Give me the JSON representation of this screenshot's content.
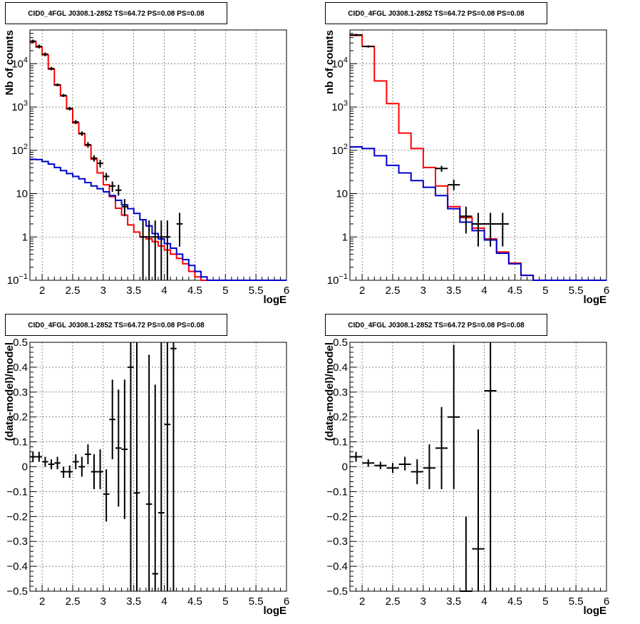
{
  "colors": {
    "data": "#000000",
    "total_model": "#ff0000",
    "component": "#0000cc",
    "grid": "#000000"
  },
  "chart_data": [
    {
      "type": "line",
      "title": "CID0_4FGL J0308.1-2852 TS=64.72 PS=0.08 PS=0.08",
      "xlabel": "logE",
      "ylabel": "Nb of counts",
      "y_scale": "log",
      "xlim": [
        1.8,
        6.0
      ],
      "ylim": [
        0.1,
        60000
      ],
      "x_ticks": [
        "2",
        "2.5",
        "3",
        "3.5",
        "4",
        "4.5",
        "5",
        "5.5",
        "6"
      ],
      "y_ticks": [
        "10^-1",
        "1",
        "10",
        "10^2",
        "10^3",
        "10^4"
      ],
      "grid": true,
      "bin_edges": [
        1.8,
        1.9,
        2.0,
        2.1,
        2.2,
        2.3,
        2.4,
        2.5,
        2.6,
        2.7,
        2.8,
        2.9,
        3.0,
        3.1,
        3.2,
        3.3,
        3.4,
        3.5,
        3.6,
        3.7,
        3.8,
        3.9,
        4.0,
        4.1,
        4.2,
        4.3,
        4.4,
        4.5,
        4.6,
        4.7,
        4.8,
        4.9,
        5.0,
        5.1,
        5.2,
        5.3,
        5.4,
        5.5,
        5.6,
        5.7,
        5.8,
        5.9,
        6.0
      ],
      "series": [
        {
          "style": "step",
          "color": "#ff0000",
          "values": [
            32000,
            24000,
            16000,
            7500,
            3200,
            1800,
            900,
            430,
            240,
            130,
            62,
            30,
            16,
            8.5,
            4.6,
            3.2,
            1.9,
            1.3,
            1.0,
            0.9,
            0.78,
            0.62,
            0.5,
            0.4,
            0.32,
            0.24,
            0.16,
            0.12,
            0.1,
            0.1,
            0.1,
            0.1,
            0.1,
            0.1,
            0.1,
            0.1,
            0.1,
            0.1,
            0.1,
            0.1,
            0.1,
            0.1
          ]
        },
        {
          "style": "step",
          "color": "#0000cc",
          "values": [
            62,
            61,
            55,
            48,
            40,
            34,
            29,
            25,
            22,
            18,
            15,
            13,
            11,
            9,
            7,
            5.5,
            4.5,
            3.5,
            2.5,
            1.8,
            1.2,
            0.9,
            0.7,
            0.55,
            0.4,
            0.3,
            0.22,
            0.16,
            0.12,
            0.1,
            0.1,
            0.1,
            0.1,
            0.1,
            0.1,
            0.1,
            0.1,
            0.1,
            0.1,
            0.1,
            0.1,
            0.1
          ]
        }
      ],
      "points": [
        {
          "x": 1.85,
          "y": 33000,
          "lo": 30000,
          "hi": 36000
        },
        {
          "x": 1.95,
          "y": 25000,
          "lo": 22500,
          "hi": 27500
        },
        {
          "x": 2.05,
          "y": 16500,
          "lo": 14800,
          "hi": 18200
        },
        {
          "x": 2.15,
          "y": 7700,
          "lo": 7000,
          "hi": 8400
        },
        {
          "x": 2.25,
          "y": 3250,
          "lo": 3000,
          "hi": 3500
        },
        {
          "x": 2.35,
          "y": 1850,
          "lo": 1700,
          "hi": 2000
        },
        {
          "x": 2.45,
          "y": 920,
          "lo": 830,
          "hi": 1010
        },
        {
          "x": 2.55,
          "y": 450,
          "lo": 400,
          "hi": 500
        },
        {
          "x": 2.65,
          "y": 245,
          "lo": 215,
          "hi": 275
        },
        {
          "x": 2.75,
          "y": 135,
          "lo": 115,
          "hi": 155
        },
        {
          "x": 2.85,
          "y": 66,
          "lo": 55,
          "hi": 77
        },
        {
          "x": 2.95,
          "y": 50,
          "lo": 40,
          "hi": 60
        },
        {
          "x": 3.05,
          "y": 25,
          "lo": 20,
          "hi": 30
        },
        {
          "x": 3.15,
          "y": 15,
          "lo": 11,
          "hi": 19
        },
        {
          "x": 3.25,
          "y": 12,
          "lo": 9,
          "hi": 16
        },
        {
          "x": 3.35,
          "y": 5,
          "lo": 3,
          "hi": 7.5
        },
        {
          "x": 3.65,
          "y": 1,
          "lo": 0.1,
          "hi": 2.4
        },
        {
          "x": 3.75,
          "y": 1,
          "lo": 0.1,
          "hi": 2.4
        },
        {
          "x": 3.85,
          "y": 1,
          "lo": 0.1,
          "hi": 2.4
        },
        {
          "x": 3.95,
          "y": 1,
          "lo": 0.1,
          "hi": 2.4
        },
        {
          "x": 4.05,
          "y": 1,
          "lo": 0.1,
          "hi": 2.4
        },
        {
          "x": 4.25,
          "y": 2,
          "lo": 0.6,
          "hi": 3.6
        }
      ]
    },
    {
      "type": "line",
      "title": "CID0_4FGL J0308.1-2852 TS=64.72 PS=0.08 PS=0.08",
      "xlabel": "logE",
      "ylabel": "nb of counts",
      "y_scale": "log",
      "xlim": [
        1.8,
        6.0
      ],
      "ylim": [
        0.1,
        60000
      ],
      "x_ticks": [
        "2",
        "2.5",
        "3",
        "3.5",
        "4",
        "4.5",
        "5",
        "5.5",
        "6"
      ],
      "y_ticks": [
        "10^-1",
        "1",
        "10",
        "10^2",
        "10^3",
        "10^4"
      ],
      "grid": true,
      "bin_edges": [
        1.8,
        2.0,
        2.2,
        2.4,
        2.6,
        2.8,
        3.0,
        3.2,
        3.4,
        3.6,
        3.8,
        4.0,
        4.2,
        4.4,
        4.6,
        4.8,
        5.0,
        5.2,
        5.4,
        5.6,
        5.8,
        6.0
      ],
      "series": [
        {
          "style": "step",
          "color": "#ff0000",
          "values": [
            45000,
            25000,
            4000,
            1200,
            250,
            110,
            40,
            15,
            5,
            2.8,
            1.6,
            0.9,
            0.45,
            0.25,
            0.13,
            0.1,
            0.1,
            0.1,
            0.1,
            0.1,
            0.1
          ]
        },
        {
          "style": "step",
          "color": "#0000cc",
          "values": [
            120,
            110,
            75,
            45,
            30,
            20,
            14,
            9,
            4.5,
            2.2,
            1.4,
            0.85,
            0.42,
            0.24,
            0.13,
            0.1,
            0.1,
            0.1,
            0.1,
            0.1,
            0.1
          ]
        }
      ],
      "points": [
        {
          "x": 1.9,
          "y": 46000,
          "lo": 43000,
          "hi": 49000
        },
        {
          "x": 2.1,
          "y": 25000,
          "lo": 23500,
          "hi": 26500
        },
        {
          "x": 3.3,
          "y": 38,
          "lo": 32,
          "hi": 44
        },
        {
          "x": 3.5,
          "y": 16,
          "lo": 12,
          "hi": 21
        },
        {
          "x": 3.7,
          "y": 3,
          "lo": 1.2,
          "hi": 5
        },
        {
          "x": 3.9,
          "y": 2,
          "lo": 0.6,
          "hi": 3.6
        },
        {
          "x": 4.1,
          "y": 2,
          "lo": 0.6,
          "hi": 3.6
        },
        {
          "x": 4.3,
          "y": 2,
          "lo": 0.6,
          "hi": 3.6
        }
      ]
    },
    {
      "type": "scatter",
      "title": "CID0_4FGL J0308.1-2852 TS=64.72 PS=0.08 PS=0.08",
      "xlabel": "logE",
      "ylabel": "(data-model)/model",
      "xlim": [
        1.8,
        6.0
      ],
      "ylim": [
        -0.5,
        0.5
      ],
      "x_ticks": [
        "2",
        "2.5",
        "3",
        "3.5",
        "4",
        "4.5",
        "5",
        "5.5",
        "6"
      ],
      "y_ticks": [
        "−0.5",
        "−0.4",
        "−0.3",
        "−0.2",
        "−0.1",
        "0",
        "0.1",
        "0.2",
        "0.3",
        "0.4",
        "0.5"
      ],
      "grid": true,
      "halfwidth": 0.05,
      "points": [
        {
          "x": 1.85,
          "y": 0.04,
          "lo": 0.02,
          "hi": 0.06
        },
        {
          "x": 1.95,
          "y": 0.04,
          "lo": 0.02,
          "hi": 0.06
        },
        {
          "x": 2.05,
          "y": 0.02,
          "lo": 0.0,
          "hi": 0.04
        },
        {
          "x": 2.15,
          "y": 0.01,
          "lo": -0.01,
          "hi": 0.03
        },
        {
          "x": 2.25,
          "y": 0.015,
          "lo": -0.01,
          "hi": 0.04
        },
        {
          "x": 2.35,
          "y": -0.02,
          "lo": -0.045,
          "hi": 0.0
        },
        {
          "x": 2.45,
          "y": -0.02,
          "lo": -0.045,
          "hi": 0.005
        },
        {
          "x": 2.55,
          "y": 0.02,
          "lo": -0.01,
          "hi": 0.05
        },
        {
          "x": 2.65,
          "y": 0.0,
          "lo": -0.04,
          "hi": 0.04
        },
        {
          "x": 2.75,
          "y": 0.05,
          "lo": 0.01,
          "hi": 0.09
        },
        {
          "x": 2.85,
          "y": -0.02,
          "lo": -0.09,
          "hi": 0.05
        },
        {
          "x": 2.95,
          "y": -0.02,
          "lo": -0.09,
          "hi": 0.07
        },
        {
          "x": 3.05,
          "y": -0.11,
          "lo": -0.22,
          "hi": -0.01
        },
        {
          "x": 3.15,
          "y": 0.19,
          "lo": 0.03,
          "hi": 0.35
        },
        {
          "x": 3.25,
          "y": 0.075,
          "lo": -0.16,
          "hi": 0.31
        },
        {
          "x": 3.35,
          "y": 0.07,
          "lo": -0.21,
          "hi": 0.35
        },
        {
          "x": 3.45,
          "y": 0.4,
          "lo": -0.5,
          "hi": 0.5
        },
        {
          "x": 3.55,
          "y": -0.105,
          "lo": -0.5,
          "hi": 0.5
        },
        {
          "x": 3.75,
          "y": -0.15,
          "lo": -0.5,
          "hi": 0.45
        },
        {
          "x": 3.85,
          "y": -0.43,
          "lo": -0.5,
          "hi": 0.33
        },
        {
          "x": 3.95,
          "y": -0.185,
          "lo": -0.5,
          "hi": 0.5
        },
        {
          "x": 4.05,
          "y": 0.17,
          "lo": -0.5,
          "hi": 0.5
        },
        {
          "x": 4.15,
          "y": 0.475,
          "lo": -0.5,
          "hi": 0.5
        }
      ]
    },
    {
      "type": "scatter",
      "title": "CID0_4FGL J0308.1-2852 TS=64.72 PS=0.08 PS=0.08",
      "xlabel": "logE",
      "ylabel": "(data-model)/model",
      "xlim": [
        1.8,
        6.0
      ],
      "ylim": [
        -0.5,
        0.5
      ],
      "x_ticks": [
        "2",
        "2.5",
        "3",
        "3.5",
        "4",
        "4.5",
        "5",
        "5.5",
        "6"
      ],
      "y_ticks": [
        "−0.5",
        "−0.4",
        "−0.3",
        "−0.2",
        "−0.1",
        "0",
        "0.1",
        "0.2",
        "0.3",
        "0.4",
        "0.5"
      ],
      "grid": true,
      "halfwidth": 0.1,
      "points": [
        {
          "x": 1.9,
          "y": 0.04,
          "lo": 0.02,
          "hi": 0.06
        },
        {
          "x": 2.1,
          "y": 0.015,
          "lo": 0.0,
          "hi": 0.03
        },
        {
          "x": 2.3,
          "y": 0.005,
          "lo": -0.01,
          "hi": 0.02
        },
        {
          "x": 2.5,
          "y": -0.005,
          "lo": -0.025,
          "hi": 0.015
        },
        {
          "x": 2.7,
          "y": 0.01,
          "lo": -0.015,
          "hi": 0.04
        },
        {
          "x": 2.9,
          "y": -0.02,
          "lo": -0.07,
          "hi": 0.03
        },
        {
          "x": 3.1,
          "y": -0.005,
          "lo": -0.09,
          "hi": 0.09
        },
        {
          "x": 3.3,
          "y": 0.075,
          "lo": -0.09,
          "hi": 0.24
        },
        {
          "x": 3.5,
          "y": 0.2,
          "lo": -0.09,
          "hi": 0.49
        },
        {
          "x": 3.7,
          "y": -0.5,
          "lo": -0.5,
          "hi": -0.2
        },
        {
          "x": 3.9,
          "y": -0.33,
          "lo": -0.5,
          "hi": 0.15
        },
        {
          "x": 4.1,
          "y": 0.305,
          "lo": -0.5,
          "hi": 0.5
        }
      ]
    }
  ]
}
